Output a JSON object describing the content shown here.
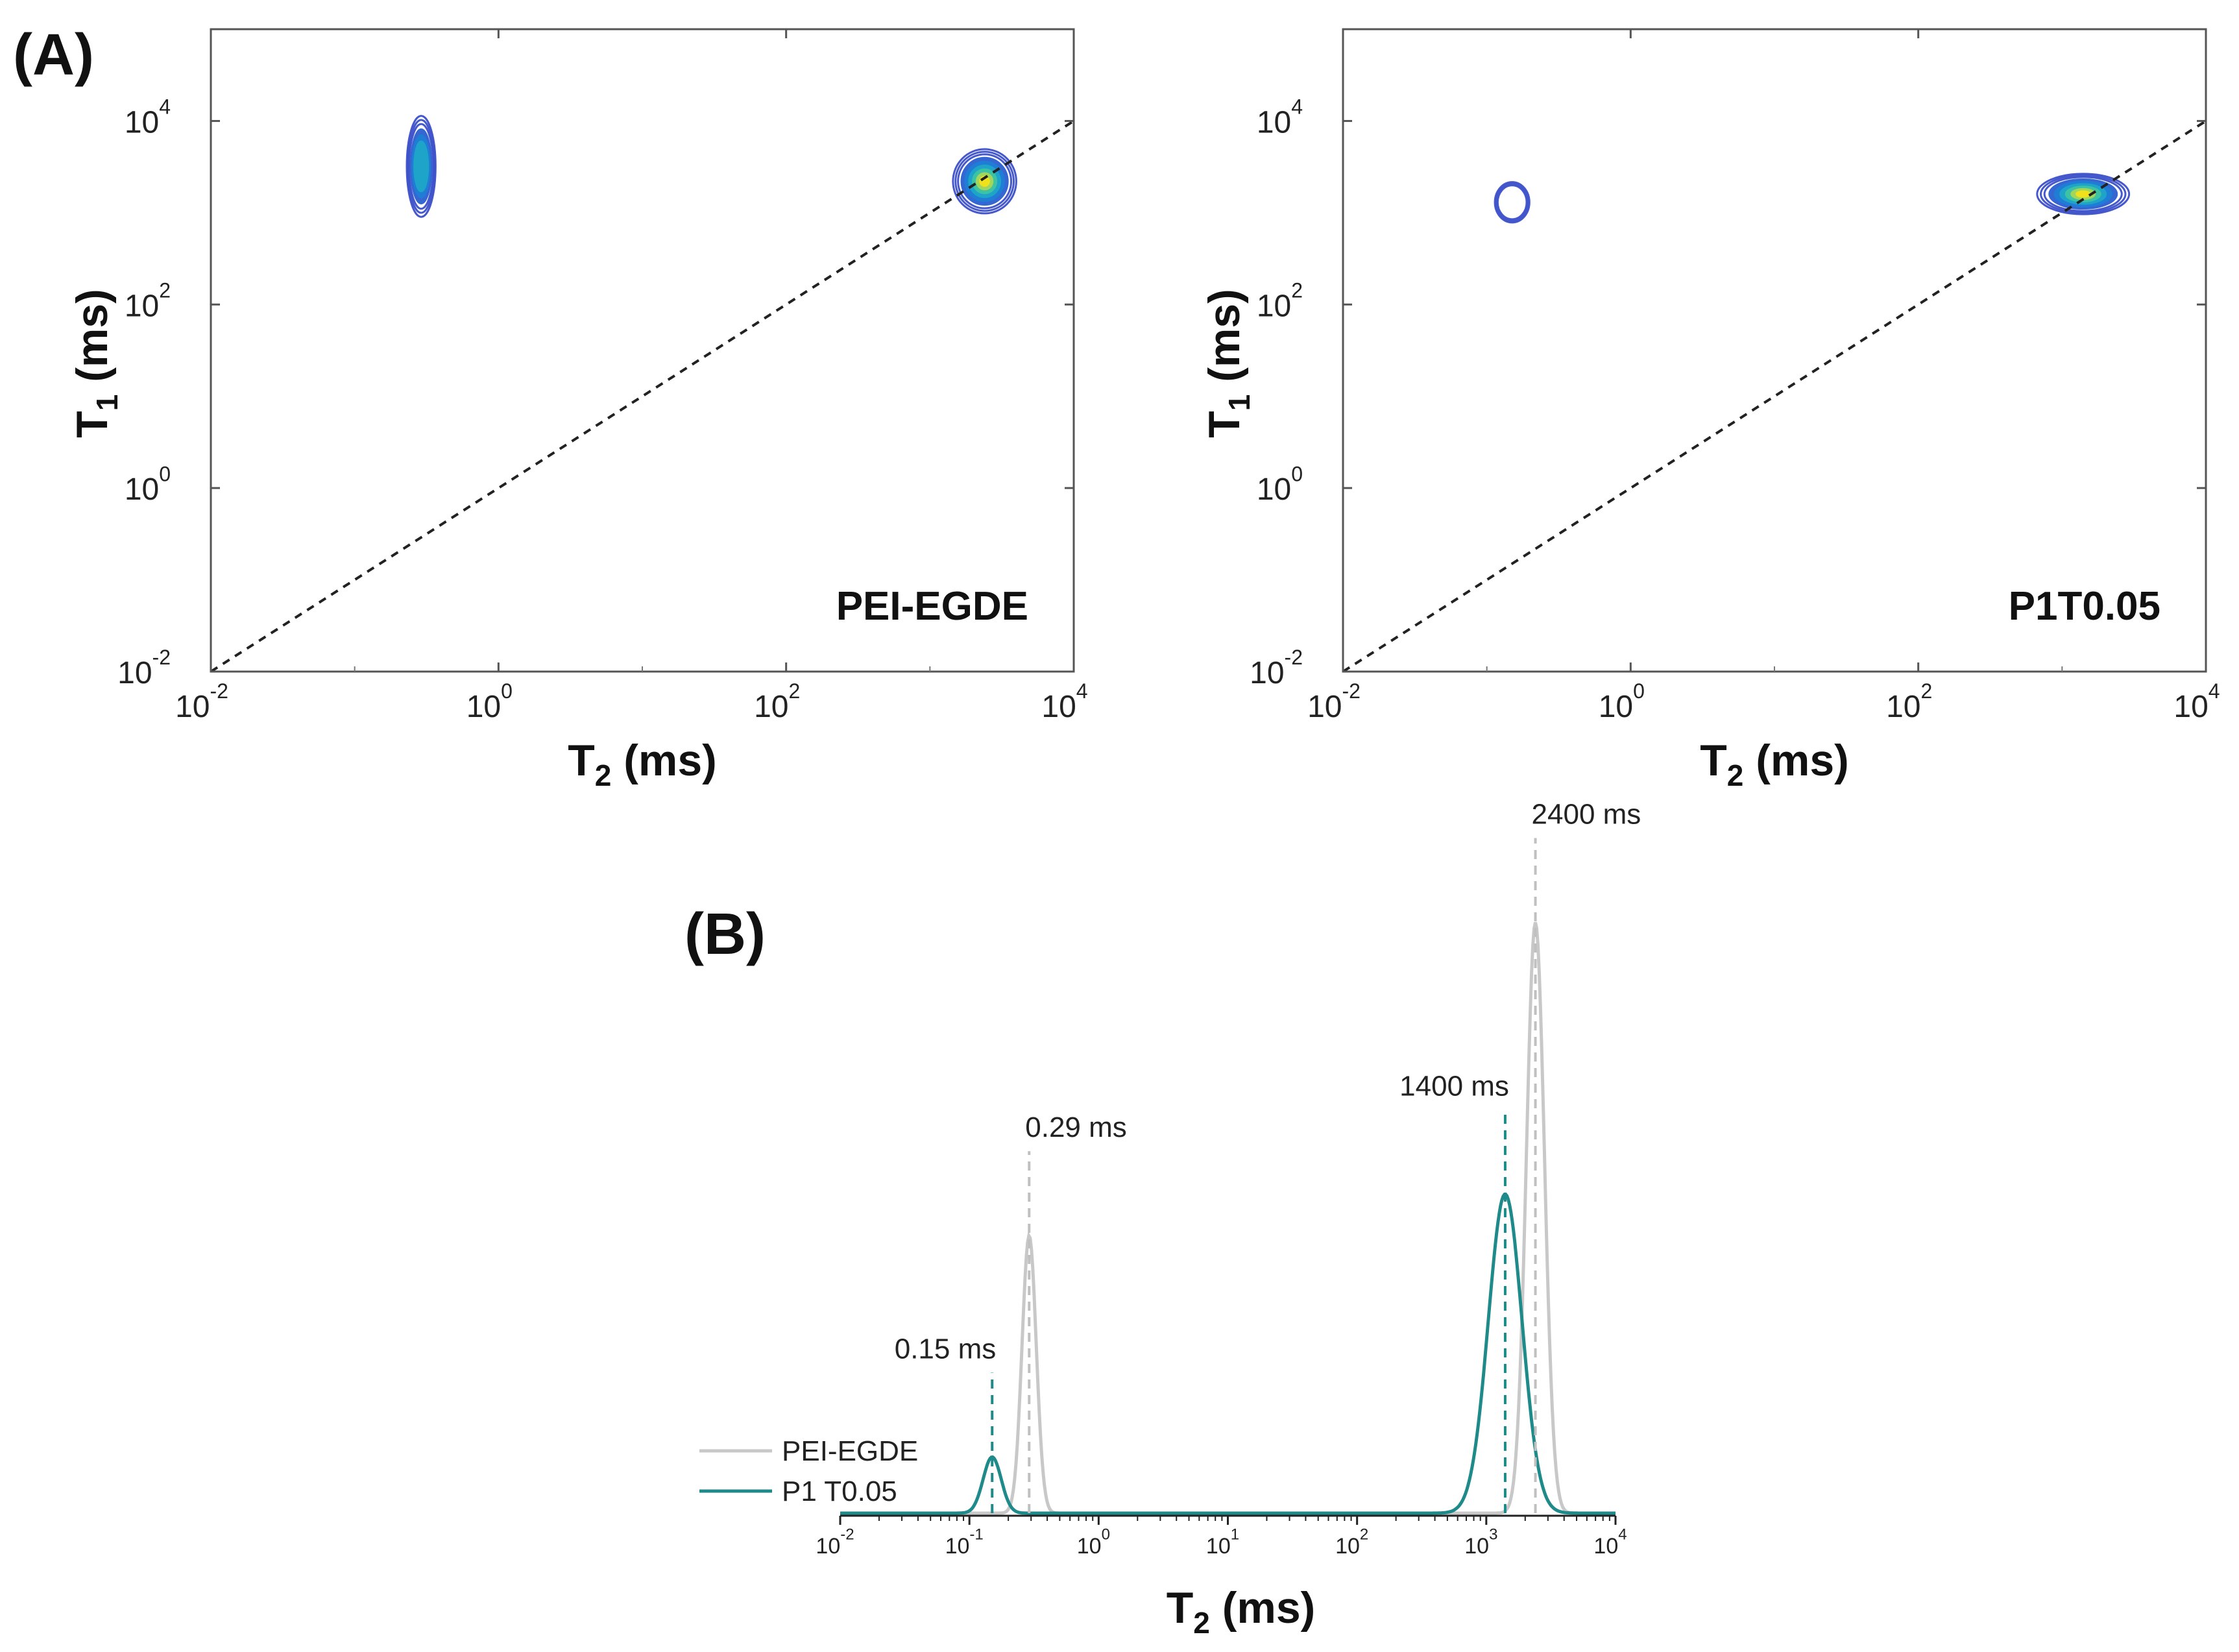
{
  "figure": {
    "panel_a_label": "(A)",
    "panel_b_label": "(B)"
  },
  "colors": {
    "peiegde_line": "#c8c8c8",
    "p1_line": "#1f8a8a",
    "p1_dash": "#1f8a8a",
    "pei_dash": "#c0c0c0",
    "diagonal": "#222222",
    "contour_outer": "#3b4fc9",
    "contour_mid": "#1ea6c9",
    "contour_inner": "#f5e21a"
  },
  "chart_data": [
    {
      "type": "heatmap",
      "id": "A-left",
      "label": "PEI-EGDE",
      "xlabel_main": "T",
      "xlabel_sub": "2",
      "xlabel_unit": "(ms)",
      "ylabel_main": "T",
      "ylabel_sub": "1",
      "ylabel_unit": "(ms)",
      "x_scale": "log",
      "y_scale": "log",
      "xlim_log10": [
        -2,
        4
      ],
      "ylim_log10": [
        -2,
        5
      ],
      "x_ticks_log10": [
        -2,
        0,
        2,
        4
      ],
      "y_ticks_log10": [
        -2,
        0,
        2,
        4
      ],
      "tick_base": "10",
      "tick_exponents_x": [
        "-2",
        "0",
        "2",
        "4"
      ],
      "tick_exponents_y": [
        "-2",
        "0",
        "2",
        "4"
      ],
      "diagonal": "T1 = T2 (dashed)",
      "peaks": [
        {
          "t2_ms": 0.29,
          "t1_ms": 3200,
          "spread_t2_log": 0.1,
          "spread_t1_log": 0.55,
          "intensity": "medium"
        },
        {
          "t2_ms": 2400,
          "t1_ms": 2200,
          "spread_t2_log": 0.22,
          "spread_t1_log": 0.35,
          "intensity": "high"
        }
      ]
    },
    {
      "type": "heatmap",
      "id": "A-right",
      "label": "P1T0.05",
      "xlabel_main": "T",
      "xlabel_sub": "2",
      "xlabel_unit": "(ms)",
      "ylabel_main": "T",
      "ylabel_sub": "1",
      "ylabel_unit": "(ms)",
      "x_scale": "log",
      "y_scale": "log",
      "xlim_log10": [
        -2,
        4
      ],
      "ylim_log10": [
        -2,
        5
      ],
      "x_ticks_log10": [
        -2,
        0,
        2,
        4
      ],
      "y_ticks_log10": [
        -2,
        0,
        2,
        4
      ],
      "tick_base": "10",
      "tick_exponents_x": [
        "-2",
        "0",
        "2",
        "4"
      ],
      "tick_exponents_y": [
        "-2",
        "0",
        "2",
        "4"
      ],
      "diagonal": "T1 = T2 (dashed)",
      "peaks": [
        {
          "t2_ms": 0.15,
          "t1_ms": 1300,
          "spread_t2_log": 0.12,
          "spread_t1_log": 0.22,
          "intensity": "low"
        },
        {
          "t2_ms": 1400,
          "t1_ms": 1600,
          "spread_t2_log": 0.32,
          "spread_t1_log": 0.22,
          "intensity": "high"
        }
      ]
    },
    {
      "type": "line",
      "id": "B",
      "xlabel_main": "T",
      "xlabel_sub": "2",
      "xlabel_unit": "(ms)",
      "x_scale": "log",
      "xlim_log10": [
        -2,
        4
      ],
      "x_ticks_log10": [
        -2,
        -1,
        0,
        1,
        2,
        3,
        4
      ],
      "tick_base": "10",
      "tick_exponents_x": [
        "-2",
        "-1",
        "0",
        "1",
        "2",
        "3",
        "4"
      ],
      "legend": [
        "PEI-EGDE",
        "P1 T0.05"
      ],
      "legend_position": "left",
      "series": [
        {
          "name": "PEI-EGDE",
          "peaks": [
            {
              "t2_ms": 0.29,
              "amplitude": 0.47,
              "width_log": 0.055
            },
            {
              "t2_ms": 2400,
              "amplitude": 1.0,
              "width_log": 0.07
            }
          ]
        },
        {
          "name": "P1 T0.05",
          "peaks": [
            {
              "t2_ms": 0.15,
              "amplitude": 0.095,
              "width_log": 0.07
            },
            {
              "t2_ms": 1400,
              "amplitude": 0.54,
              "width_log": 0.13
            }
          ]
        }
      ],
      "annotations": [
        {
          "text": "0.29 ms",
          "t2_ms": 0.29,
          "series": "PEI-EGDE"
        },
        {
          "text": "2400 ms",
          "t2_ms": 2400,
          "series": "PEI-EGDE"
        },
        {
          "text": "0.15 ms",
          "t2_ms": 0.15,
          "series": "P1 T0.05"
        },
        {
          "text": "1400 ms",
          "t2_ms": 1400,
          "series": "P1 T0.05"
        }
      ],
      "ylim": [
        0,
        1.05
      ]
    }
  ]
}
